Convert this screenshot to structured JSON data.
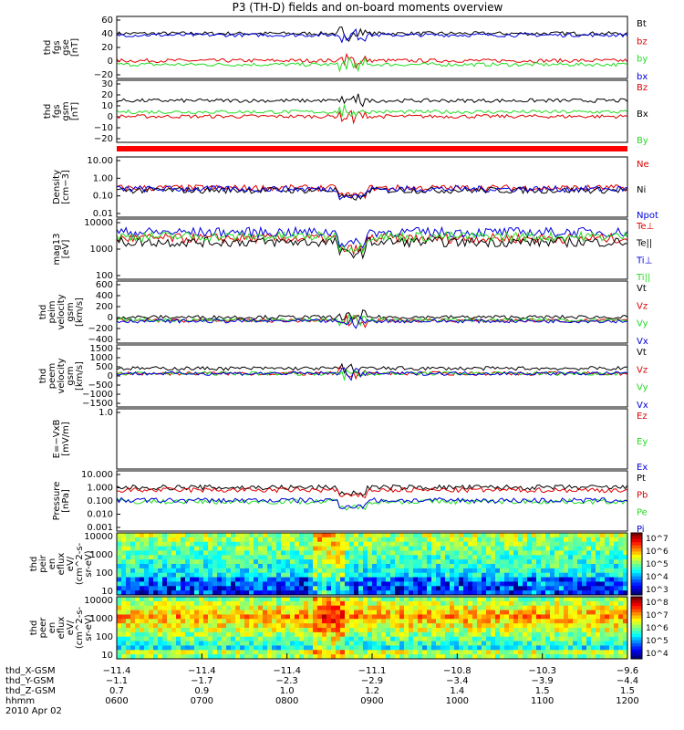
{
  "title": "P3 (TH-D) fields and on-board moments overview",
  "colors": {
    "black": "#000000",
    "red": "#dd0000",
    "green": "#22dd22",
    "blue": "#0000dd",
    "darkred": "#aa0000"
  },
  "chart_data": [
    {
      "type": "line",
      "ylabel": [
        "thd",
        "fgs",
        "gse",
        "[nT]"
      ],
      "ylim": [
        -20,
        60
      ],
      "yticks": [
        "60",
        "40",
        "20",
        "0",
        "−20"
      ],
      "series": [
        {
          "name": "Bt",
          "color": "#000000",
          "level": 38
        },
        {
          "name": "bz",
          "color": "#dd0000",
          "level": 3
        },
        {
          "name": "by",
          "color": "#22dd22",
          "level": -2
        },
        {
          "name": "bx",
          "color": "#0000dd",
          "level": 36
        }
      ]
    },
    {
      "type": "line",
      "ylabel": [
        "thd",
        "fgs",
        "gsm",
        "[nT]"
      ],
      "ylim": [
        -25,
        30
      ],
      "yticks": [
        "30",
        "20",
        "10",
        "0",
        "−10",
        "−20"
      ],
      "series": [
        {
          "name": "Bz",
          "color": "#dd0000",
          "level": -2
        },
        {
          "name": "Bx",
          "color": "#000000",
          "level": 12
        },
        {
          "name": "By",
          "color": "#22dd22",
          "level": 2
        }
      ]
    },
    {
      "type": "line",
      "ylabel": [
        "Density",
        "[cm−3]"
      ],
      "scale": "log",
      "ylim": [
        0.01,
        20
      ],
      "yticks": [
        "10.00",
        "1.00",
        "0.10",
        "0.01"
      ],
      "series": [
        {
          "name": "Ne",
          "color": "#dd0000",
          "level": 0.4
        },
        {
          "name": "Ni",
          "color": "#000000",
          "level": 0.3
        },
        {
          "name": "Npot",
          "color": "#0000dd",
          "level": 0.35
        }
      ]
    },
    {
      "type": "line",
      "ylabel": [
        "mag13",
        "[eV]"
      ],
      "scale": "log",
      "ylim": [
        100,
        15000
      ],
      "yticks": [
        "10000",
        "1000",
        "100"
      ],
      "series": [
        {
          "name": "Te⊥",
          "color": "#dd0000",
          "level": 3000
        },
        {
          "name": "Te||",
          "color": "#000000",
          "level": 2200
        },
        {
          "name": "Ti⊥",
          "color": "#0000dd",
          "level": 5000
        },
        {
          "name": "Ti||",
          "color": "#22dd22",
          "level": 3500
        }
      ]
    },
    {
      "type": "line",
      "ylabel": [
        "thd",
        "peim",
        "velocity",
        "gsm",
        "[km/s]"
      ],
      "ylim": [
        -400,
        700
      ],
      "yticks": [
        "600",
        "400",
        "200",
        "0",
        "−200",
        "−400"
      ],
      "series": [
        {
          "name": "Vt",
          "color": "#000000",
          "level": 60
        },
        {
          "name": "Vz",
          "color": "#dd0000",
          "level": 0
        },
        {
          "name": "Vy",
          "color": "#22dd22",
          "level": 10
        },
        {
          "name": "Vx",
          "color": "#0000dd",
          "level": -10
        }
      ]
    },
    {
      "type": "line",
      "ylabel": [
        "thd",
        "peem",
        "velocity",
        "gsm",
        "[km/s]"
      ],
      "ylim": [
        -2000,
        1700
      ],
      "yticks": [
        "1500",
        "1000",
        "500",
        "0",
        "−500",
        "−1000",
        "−1500"
      ],
      "series": [
        {
          "name": "Vt",
          "color": "#000000",
          "level": 300
        },
        {
          "name": "Vz",
          "color": "#dd0000",
          "level": 0
        },
        {
          "name": "Vy",
          "color": "#22dd22",
          "level": 0
        },
        {
          "name": "Vx",
          "color": "#0000dd",
          "level": 0
        }
      ]
    },
    {
      "type": "line",
      "ylabel": [
        "E=−VxB",
        "[mV/m]"
      ],
      "ylim": [
        0,
        1
      ],
      "yticks": [
        "1.0"
      ],
      "series": [
        {
          "name": "Ez",
          "color": "#dd0000"
        },
        {
          "name": "Ey",
          "color": "#22dd22"
        },
        {
          "name": "Ex",
          "color": "#0000dd"
        }
      ]
    },
    {
      "type": "line",
      "ylabel": [
        "Pressure",
        "[nPa]"
      ],
      "scale": "log",
      "ylim": [
        0.001,
        12
      ],
      "yticks": [
        "10.000",
        "1.000",
        "0.100",
        "0.010",
        "0.001"
      ],
      "series": [
        {
          "name": "Pt",
          "color": "#000000",
          "level": 0.9
        },
        {
          "name": "Pb",
          "color": "#dd0000",
          "level": 0.6
        },
        {
          "name": "Pe",
          "color": "#22dd22",
          "level": 0.1
        },
        {
          "name": "Pi",
          "color": "#0000dd",
          "level": 0.12
        }
      ]
    },
    {
      "type": "heatmap",
      "ylabel": [
        "thd",
        "peir",
        "en",
        "eflux",
        "eV/",
        "(cm^2-s-",
        "sr-eV)"
      ],
      "scale": "log",
      "ylim": [
        5,
        20000
      ],
      "yticks": [
        "10000",
        "1000",
        "100",
        "10"
      ],
      "colorbar": [
        "10^7",
        "10^6",
        "10^5",
        "10^4",
        "10^3"
      ]
    },
    {
      "type": "heatmap",
      "ylabel": [
        "thd",
        "peer",
        "en",
        "eflux",
        "eV/",
        "(cm^2-s-",
        "sr-eV)"
      ],
      "scale": "log",
      "ylim": [
        5,
        20000
      ],
      "yticks": [
        "10000",
        "1000",
        "100",
        "10"
      ],
      "colorbar": [
        "10^8",
        "10^7",
        "10^6",
        "10^5",
        "10^4"
      ]
    }
  ],
  "xaxis": {
    "rows": [
      {
        "label": "thd_X-GSM",
        "values": [
          "−11.4",
          "−11.4",
          "−11.4",
          "−11.1",
          "−10.8",
          "−10.3",
          "−9.6"
        ]
      },
      {
        "label": "thd_Y-GSM",
        "values": [
          "−1.1",
          "−1.7",
          "−2.3",
          "−2.9",
          "−3.4",
          "−3.9",
          "−4.4"
        ]
      },
      {
        "label": "thd_Z-GSM",
        "values": [
          "0.7",
          "0.9",
          "1.0",
          "1.2",
          "1.4",
          "1.5",
          "1.5"
        ]
      },
      {
        "label": "hhmm",
        "values": [
          "0600",
          "0700",
          "0800",
          "0900",
          "1000",
          "1100",
          "1200"
        ]
      }
    ],
    "date": "2010 Apr 02"
  }
}
